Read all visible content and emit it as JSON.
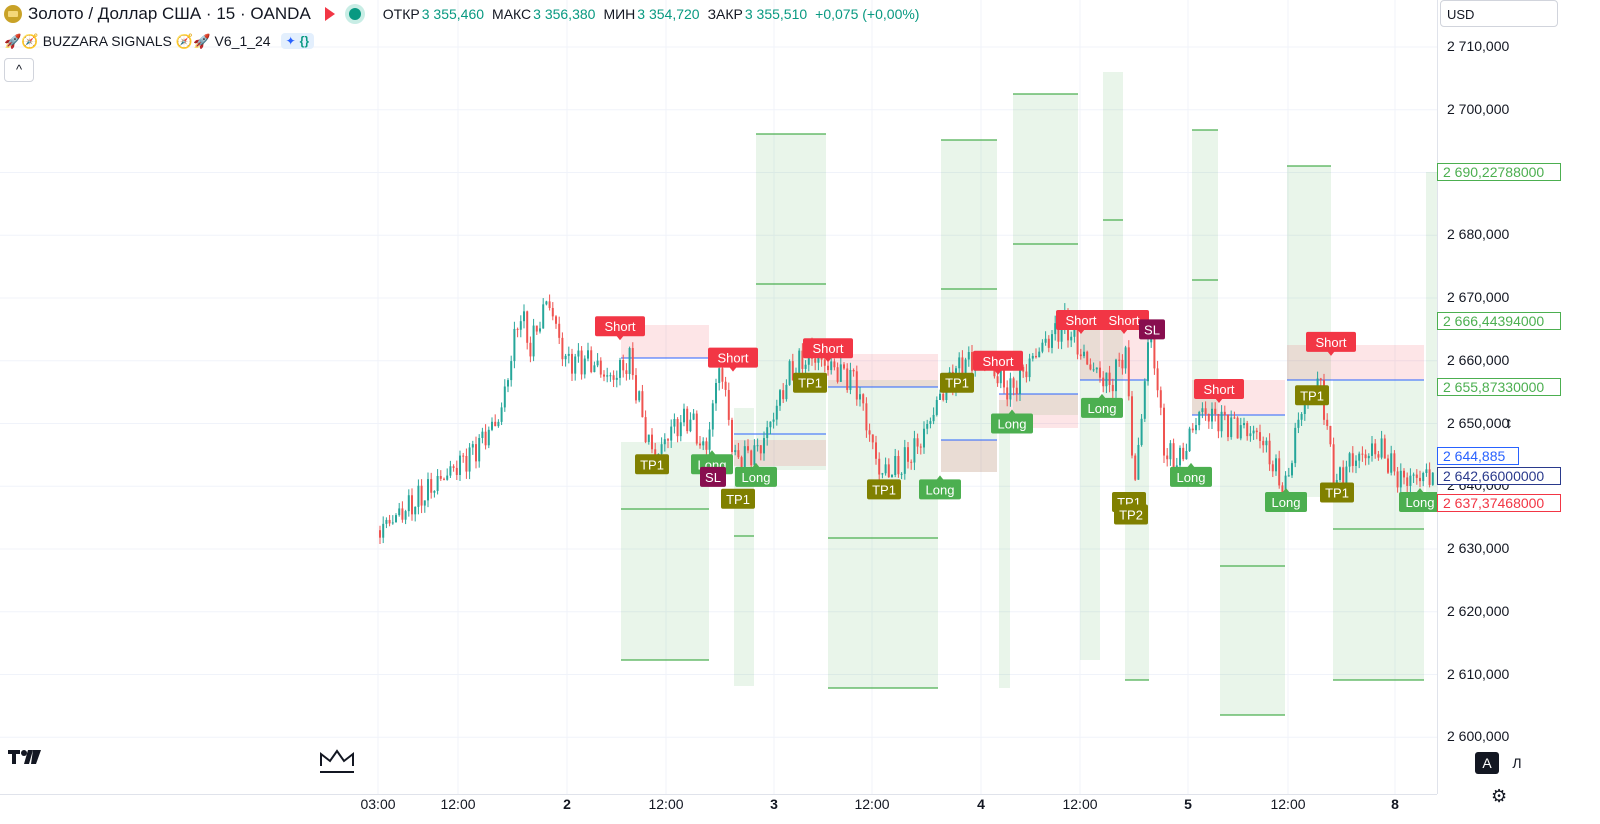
{
  "header": {
    "symbol": "Золото / Доллар США · 15 · OANDA",
    "ohlc": [
      {
        "label": "ОТКР",
        "value": "3 355,460"
      },
      {
        "label": "МАКС",
        "value": "3 356,380"
      },
      {
        "label": "МИН",
        "value": "3 354,720"
      },
      {
        "label": "ЗАКР",
        "value": "3 355,510"
      }
    ],
    "change": "+0,075 (+0,00%)"
  },
  "indicator": {
    "name": "🚀🧭 BUZZARA SIGNALS 🧭🚀 V6_1_24",
    "icons": [
      "sparkle-icon",
      "braces-icon"
    ]
  },
  "collapse_label": "^",
  "price_axis": {
    "currency": "USD",
    "ticks": [
      "2 710,000",
      "2 700,000",
      "2 690,000",
      "2 680,000",
      "2 670,000",
      "2 660,000",
      "2 650,000",
      "2 640,000",
      "2 630,000",
      "2 620,000",
      "2 610,000",
      "2 600,000"
    ],
    "tags": [
      {
        "text": "2 690,22788000",
        "color": "#4caf50"
      },
      {
        "text": "2 666,44394000",
        "color": "#4caf50"
      },
      {
        "text": "2 655,87330000",
        "color": "#4caf50"
      },
      {
        "text": "2 644,885",
        "color": "#2962ff"
      },
      {
        "text": "2 642,66000000",
        "color": "#2a3a8c"
      },
      {
        "text": "2 637,37468000",
        "color": "#f23645"
      }
    ],
    "auto_label": "A",
    "log_label": "Л"
  },
  "time_axis": {
    "ticks": [
      "03:00",
      "12:00",
      "2",
      "12:00",
      "3",
      "12:00",
      "4",
      "12:00",
      "5",
      "12:00",
      "8"
    ]
  },
  "chart_data": {
    "type": "candlestick",
    "symbol": "Золото / Доллар США",
    "interval": "15",
    "ylim": [
      2597,
      2715
    ],
    "signals": [
      {
        "label": "Short",
        "kind": "short",
        "price": 2665.5
      },
      {
        "label": "TP1",
        "kind": "tp",
        "price": 2643.5
      },
      {
        "label": "Short",
        "kind": "short",
        "price": 2660.5
      },
      {
        "label": "Long",
        "kind": "long",
        "price": 2643.5
      },
      {
        "label": "SL",
        "kind": "sl",
        "price": 2641.5
      },
      {
        "label": "Long",
        "kind": "long",
        "price": 2641.5
      },
      {
        "label": "TP1",
        "kind": "tp",
        "price": 2638
      },
      {
        "label": "Short",
        "kind": "short",
        "price": 2662
      },
      {
        "label": "TP1",
        "kind": "tp",
        "price": 2656.5
      },
      {
        "label": "TP1",
        "kind": "tp",
        "price": 2639.5
      },
      {
        "label": "Long",
        "kind": "long",
        "price": 2639.5
      },
      {
        "label": "TP1",
        "kind": "tp",
        "price": 2656.5
      },
      {
        "label": "Short",
        "kind": "short",
        "price": 2660
      },
      {
        "label": "Long",
        "kind": "long",
        "price": 2650
      },
      {
        "label": "Long",
        "kind": "long",
        "price": 2652.5
      },
      {
        "label": "Short",
        "kind": "short",
        "price": 2666.5
      },
      {
        "label": "Short",
        "kind": "short",
        "price": 2666.5
      },
      {
        "label": "SL",
        "kind": "sl",
        "price": 2665
      },
      {
        "label": "TP1",
        "kind": "tp",
        "price": 2637.5
      },
      {
        "label": "TP2",
        "kind": "tp",
        "price": 2635.5
      },
      {
        "label": "Short",
        "kind": "short",
        "price": 2655.5
      },
      {
        "label": "Long",
        "kind": "long",
        "price": 2641.5
      },
      {
        "label": "TP1",
        "kind": "tp",
        "price": 2654.5
      },
      {
        "label": "Short",
        "kind": "short",
        "price": 2663
      },
      {
        "label": "Long",
        "kind": "long",
        "price": 2637.5
      },
      {
        "label": "TP1",
        "kind": "tp",
        "price": 2639
      },
      {
        "label": "Long",
        "kind": "long",
        "price": 2637.5
      }
    ]
  },
  "colors": {
    "up": "#26a69a",
    "down": "#ef5350",
    "short": "#f23645",
    "long": "#4caf50",
    "tp": "#808000",
    "sl": "#880e4f"
  }
}
